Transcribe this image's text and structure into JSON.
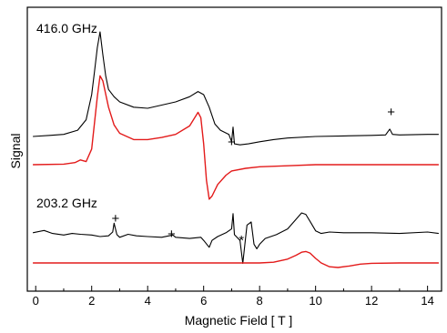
{
  "chart_data": {
    "type": "line",
    "title": "",
    "xlabel": "Magnetic Field [ T ]",
    "ylabel": "Signal",
    "xlim": [
      -0.3,
      14.5
    ],
    "x_ticks": [
      0,
      2,
      4,
      6,
      8,
      10,
      12,
      14
    ],
    "y_ticks_labeled": false,
    "grid": false,
    "legend": "none",
    "panels": [
      {
        "label": "416.0 GHz",
        "series": [
          {
            "kind": "experimental",
            "color": "#000000",
            "points": [
              [
                -0.1,
                0.0
              ],
              [
                0.5,
                0.01
              ],
              [
                1.0,
                0.02
              ],
              [
                1.5,
                0.06
              ],
              [
                1.8,
                0.16
              ],
              [
                2.0,
                0.4
              ],
              [
                2.1,
                0.62
              ],
              [
                2.2,
                0.85
              ],
              [
                2.3,
                1.0
              ],
              [
                2.4,
                0.78
              ],
              [
                2.5,
                0.58
              ],
              [
                2.6,
                0.45
              ],
              [
                2.8,
                0.38
              ],
              [
                3.0,
                0.33
              ],
              [
                3.5,
                0.28
              ],
              [
                4.0,
                0.27
              ],
              [
                4.5,
                0.3
              ],
              [
                5.0,
                0.33
              ],
              [
                5.5,
                0.38
              ],
              [
                5.8,
                0.43
              ],
              [
                6.0,
                0.4
              ],
              [
                6.2,
                0.28
              ],
              [
                6.4,
                0.12
              ],
              [
                6.6,
                0.06
              ],
              [
                6.9,
                0.02
              ],
              [
                7.0,
                -0.05
              ],
              [
                7.05,
                0.09
              ],
              [
                7.1,
                -0.07
              ],
              [
                7.3,
                -0.08
              ],
              [
                7.6,
                -0.07
              ],
              [
                8.0,
                -0.05
              ],
              [
                8.5,
                -0.03
              ],
              [
                9.0,
                -0.015
              ],
              [
                10.0,
                0.0
              ],
              [
                11.0,
                0.005
              ],
              [
                12.0,
                0.01
              ],
              [
                12.5,
                0.015
              ],
              [
                12.65,
                0.07
              ],
              [
                12.75,
                0.02
              ],
              [
                13.0,
                0.015
              ],
              [
                14.0,
                0.02
              ],
              [
                14.4,
                0.02
              ]
            ]
          },
          {
            "kind": "simulation",
            "color": "#e31b1b",
            "points": [
              [
                -0.1,
                0.0
              ],
              [
                1.0,
                0.005
              ],
              [
                1.4,
                0.02
              ],
              [
                1.6,
                0.045
              ],
              [
                1.8,
                0.03
              ],
              [
                2.0,
                0.15
              ],
              [
                2.2,
                0.65
              ],
              [
                2.3,
                0.85
              ],
              [
                2.4,
                0.8
              ],
              [
                2.6,
                0.55
              ],
              [
                2.8,
                0.38
              ],
              [
                3.0,
                0.3
              ],
              [
                3.5,
                0.24
              ],
              [
                4.0,
                0.24
              ],
              [
                4.5,
                0.26
              ],
              [
                5.0,
                0.29
              ],
              [
                5.5,
                0.37
              ],
              [
                5.8,
                0.5
              ],
              [
                5.9,
                0.45
              ],
              [
                6.0,
                0.2
              ],
              [
                6.1,
                -0.15
              ],
              [
                6.2,
                -0.33
              ],
              [
                6.3,
                -0.3
              ],
              [
                6.5,
                -0.19
              ],
              [
                6.8,
                -0.1
              ],
              [
                7.0,
                -0.06
              ],
              [
                7.5,
                -0.035
              ],
              [
                8.0,
                -0.02
              ],
              [
                9.0,
                -0.01
              ],
              [
                10.0,
                0.0
              ],
              [
                12.0,
                0.0
              ],
              [
                14.4,
                0.0
              ]
            ]
          }
        ],
        "markers": [
          {
            "symbol": "+",
            "x": 7.0
          },
          {
            "symbol": "+",
            "x": 12.7
          }
        ]
      },
      {
        "label": "203.2 GHz",
        "series": [
          {
            "kind": "experimental",
            "color": "#000000",
            "points": [
              [
                -0.1,
                0.1
              ],
              [
                0.3,
                0.16
              ],
              [
                0.6,
                0.08
              ],
              [
                1.0,
                0.04
              ],
              [
                1.3,
                0.08
              ],
              [
                1.6,
                0.06
              ],
              [
                2.0,
                0.04
              ],
              [
                2.3,
                0.0
              ],
              [
                2.6,
                0.02
              ],
              [
                2.75,
                0.12
              ],
              [
                2.8,
                0.35
              ],
              [
                2.9,
                0.05
              ],
              [
                3.0,
                -0.02
              ],
              [
                3.3,
                0.06
              ],
              [
                3.6,
                0.02
              ],
              [
                4.0,
                0.0
              ],
              [
                4.5,
                -0.02
              ],
              [
                4.9,
                0.04
              ],
              [
                5.0,
                -0.02
              ],
              [
                5.5,
                -0.05
              ],
              [
                5.9,
                -0.02
              ],
              [
                6.0,
                -0.1
              ],
              [
                6.2,
                -0.28
              ],
              [
                6.3,
                -0.1
              ],
              [
                6.5,
                0.0
              ],
              [
                6.8,
                0.1
              ],
              [
                7.0,
                0.2
              ],
              [
                7.05,
                0.6
              ],
              [
                7.1,
                0.05
              ],
              [
                7.3,
                -0.1
              ],
              [
                7.4,
                -0.7
              ],
              [
                7.55,
                0.3
              ],
              [
                7.7,
                0.38
              ],
              [
                7.8,
                -0.2
              ],
              [
                7.9,
                -0.32
              ],
              [
                8.0,
                -0.2
              ],
              [
                8.2,
                -0.05
              ],
              [
                8.6,
                0.05
              ],
              [
                9.0,
                0.2
              ],
              [
                9.3,
                0.45
              ],
              [
                9.5,
                0.62
              ],
              [
                9.65,
                0.58
              ],
              [
                9.8,
                0.4
              ],
              [
                10.0,
                0.15
              ],
              [
                10.2,
                0.08
              ],
              [
                10.5,
                0.12
              ],
              [
                11.0,
                0.1
              ],
              [
                12.0,
                0.1
              ],
              [
                13.0,
                0.08
              ],
              [
                14.0,
                0.12
              ],
              [
                14.4,
                0.08
              ]
            ]
          },
          {
            "kind": "simulation",
            "color": "#e31b1b",
            "points": [
              [
                -0.1,
                0.0
              ],
              [
                5.0,
                0.0
              ],
              [
                7.0,
                0.0
              ],
              [
                8.0,
                0.0
              ],
              [
                8.5,
                0.02
              ],
              [
                9.0,
                0.1
              ],
              [
                9.3,
                0.2
              ],
              [
                9.5,
                0.28
              ],
              [
                9.65,
                0.3
              ],
              [
                9.8,
                0.26
              ],
              [
                10.0,
                0.12
              ],
              [
                10.2,
                0.0
              ],
              [
                10.5,
                -0.1
              ],
              [
                10.8,
                -0.12
              ],
              [
                11.2,
                -0.08
              ],
              [
                11.6,
                -0.03
              ],
              [
                12.0,
                -0.01
              ],
              [
                13.0,
                0.0
              ],
              [
                14.4,
                0.0
              ]
            ]
          }
        ],
        "markers": [
          {
            "symbol": "+",
            "x": 2.85
          },
          {
            "symbol": "+",
            "x": 4.85
          },
          {
            "symbol": "*",
            "x": 7.35
          }
        ]
      }
    ]
  }
}
